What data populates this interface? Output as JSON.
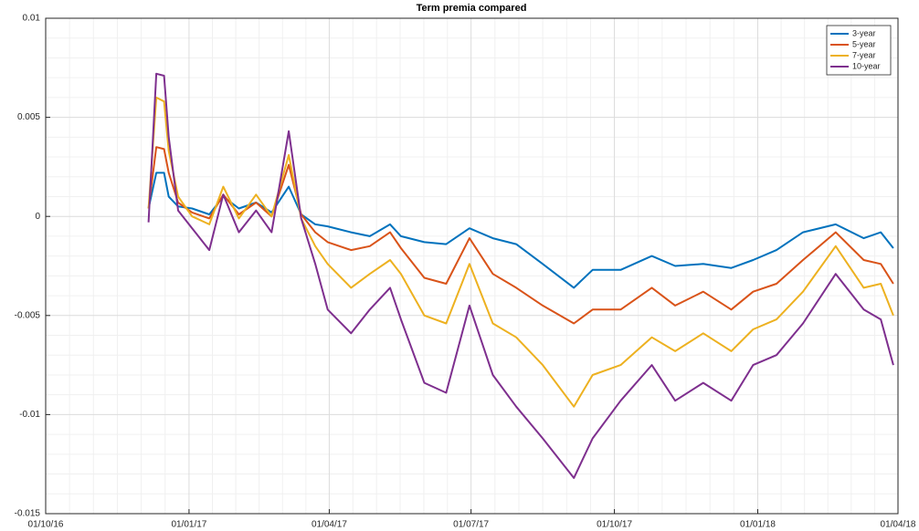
{
  "chart_data": {
    "type": "line",
    "title": "Term premia compared",
    "x": [
      "2016-12-06",
      "2016-12-11",
      "2016-12-16",
      "2016-12-19",
      "2016-12-25",
      "2017-01-03",
      "2017-01-14",
      "2017-01-23",
      "2017-02-02",
      "2017-02-13",
      "2017-02-23",
      "2017-03-06",
      "2017-03-14",
      "2017-03-23",
      "2017-03-31",
      "2017-04-15",
      "2017-04-27",
      "2017-05-10",
      "2017-05-17",
      "2017-06-01",
      "2017-06-15",
      "2017-06-30",
      "2017-07-15",
      "2017-07-30",
      "2017-08-16",
      "2017-09-05",
      "2017-09-17",
      "2017-10-05",
      "2017-10-25",
      "2017-11-09",
      "2017-11-27",
      "2017-12-15",
      "2017-12-29",
      "2018-01-13",
      "2018-01-30",
      "2018-02-20",
      "2018-03-10",
      "2018-03-21",
      "2018-03-29"
    ],
    "series": [
      {
        "name": "3-year",
        "color": "#0072bd",
        "values": [
          0.0004,
          0.0022,
          0.0022,
          0.001,
          0.0005,
          0.0004,
          0.0001,
          0.001,
          0.0004,
          0.0007,
          0.0002,
          0.0015,
          0.0001,
          -0.0004,
          -0.0005,
          -0.0008,
          -0.001,
          -0.0004,
          -0.001,
          -0.0013,
          -0.0014,
          -0.0006,
          -0.0011,
          -0.0014,
          -0.0024,
          -0.0036,
          -0.0027,
          -0.0027,
          -0.002,
          -0.0025,
          -0.0024,
          -0.0026,
          -0.0022,
          -0.0017,
          -0.0008,
          -0.0004,
          -0.0011,
          -0.0008,
          -0.0016
        ]
      },
      {
        "name": "5-year",
        "color": "#d95319",
        "values": [
          0.0004,
          0.0035,
          0.0034,
          0.0022,
          0.0007,
          0.0002,
          -0.0001,
          0.0011,
          0.0001,
          0.0007,
          0,
          0.0026,
          0.0001,
          -0.0008,
          -0.0013,
          -0.0017,
          -0.0015,
          -0.0008,
          -0.0016,
          -0.0031,
          -0.0034,
          -0.0011,
          -0.0029,
          -0.0036,
          -0.0045,
          -0.0054,
          -0.0047,
          -0.0047,
          -0.0036,
          -0.0045,
          -0.0038,
          -0.0047,
          -0.0038,
          -0.0034,
          -0.0022,
          -0.0008,
          -0.0022,
          -0.0024,
          -0.0034
        ]
      },
      {
        "name": "7-year",
        "color": "#edb120",
        "values": [
          0.0004,
          0.006,
          0.0058,
          0.0033,
          0.001,
          0,
          -0.0004,
          0.0015,
          -0.0001,
          0.0011,
          0,
          0.0031,
          -0.0001,
          -0.0015,
          -0.0024,
          -0.0036,
          -0.0029,
          -0.0022,
          -0.0029,
          -0.005,
          -0.0054,
          -0.0024,
          -0.0054,
          -0.0061,
          -0.0075,
          -0.0096,
          -0.008,
          -0.0075,
          -0.0061,
          -0.0068,
          -0.0059,
          -0.0068,
          -0.0057,
          -0.0052,
          -0.0038,
          -0.0015,
          -0.0036,
          -0.0034,
          -0.005
        ]
      },
      {
        "name": "10-year",
        "color": "#7e2f8e",
        "values": [
          -0.0003,
          0.0072,
          0.0071,
          0.004,
          0.0003,
          -0.0006,
          -0.0017,
          0.0011,
          -0.0008,
          0.0003,
          -0.0008,
          0.0043,
          -0.0001,
          -0.0024,
          -0.0047,
          -0.0059,
          -0.0047,
          -0.0036,
          -0.0052,
          -0.0084,
          -0.0089,
          -0.0045,
          -0.008,
          -0.0096,
          -0.0112,
          -0.0132,
          -0.0112,
          -0.0093,
          -0.0075,
          -0.0093,
          -0.0084,
          -0.0093,
          -0.0075,
          -0.007,
          -0.0054,
          -0.0029,
          -0.0047,
          -0.0052,
          -0.0075
        ]
      }
    ],
    "xlim": [
      "2016-10-01",
      "2018-04-01"
    ],
    "xticks": [
      {
        "value": "2016-10-01",
        "label": "01/10/16"
      },
      {
        "value": "2017-01-01",
        "label": "01/01/17"
      },
      {
        "value": "2017-04-01",
        "label": "01/04/17"
      },
      {
        "value": "2017-07-01",
        "label": "01/07/17"
      },
      {
        "value": "2017-10-01",
        "label": "01/10/17"
      },
      {
        "value": "2018-01-01",
        "label": "01/01/18"
      },
      {
        "value": "2018-04-01",
        "label": "01/04/18"
      }
    ],
    "ylim": [
      -0.015,
      0.01
    ],
    "yticks": [
      -0.015,
      -0.01,
      -0.005,
      0,
      0.005,
      0.01
    ],
    "grid": true,
    "minor_grid": true,
    "legend": "top-right"
  }
}
